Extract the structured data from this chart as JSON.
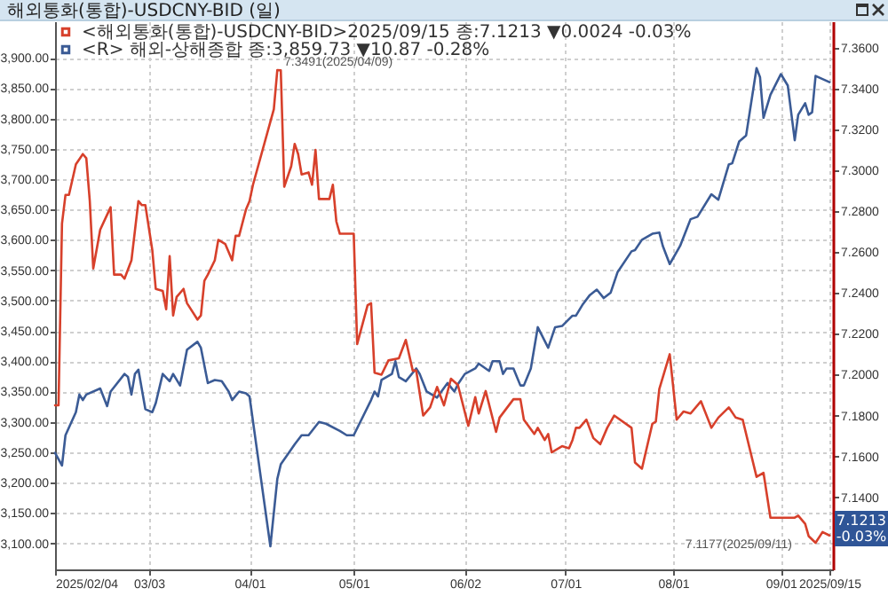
{
  "chart_data": {
    "type": "line",
    "title": "해외통화(통합)-USDCNY-BID (일)",
    "xlim": [
      "2025-02-04",
      "2025-09-16"
    ],
    "xticks": [
      {
        "value": "2025-02-04",
        "label": "2025/02/04"
      },
      {
        "value": "2025-03-03",
        "label": "03/03"
      },
      {
        "value": "2025-04-01",
        "label": "04/01"
      },
      {
        "value": "2025-05-01",
        "label": "05/01"
      },
      {
        "value": "2025-06-02",
        "label": "06/02"
      },
      {
        "value": "2025-07-01",
        "label": "07/01"
      },
      {
        "value": "2025-08-01",
        "label": "08/01"
      },
      {
        "value": "2025-09-01",
        "label": "09/01"
      },
      {
        "value": "2025-09-15",
        "label": "2025/09/15"
      }
    ],
    "ylim": [
      3057,
      3960
    ],
    "yticks": [
      {
        "value": 3100,
        "label": "3,100.00"
      },
      {
        "value": 3150,
        "label": "3,150.00"
      },
      {
        "value": 3200,
        "label": "3,200.00"
      },
      {
        "value": 3250,
        "label": "3,250.00"
      },
      {
        "value": 3300,
        "label": "3,300.00"
      },
      {
        "value": 3350,
        "label": "3,350.00"
      },
      {
        "value": 3400,
        "label": "3,400.00"
      },
      {
        "value": 3450,
        "label": "3,450.00"
      },
      {
        "value": 3500,
        "label": "3,500.00"
      },
      {
        "value": 3550,
        "label": "3,550.00"
      },
      {
        "value": 3600,
        "label": "3,600.00"
      },
      {
        "value": 3650,
        "label": "3,650.00"
      },
      {
        "value": 3700,
        "label": "3,700.00"
      },
      {
        "value": 3750,
        "label": "3,750.00"
      },
      {
        "value": 3800,
        "label": "3,800.00"
      },
      {
        "value": 3850,
        "label": "3,850.00"
      },
      {
        "value": 3900,
        "label": "3,900.00"
      }
    ],
    "y2lim": [
      7.1047,
      7.373
    ],
    "y2ticks": [
      {
        "value": 7.14,
        "label": "7.1400"
      },
      {
        "value": 7.16,
        "label": "7.1600"
      },
      {
        "value": 7.18,
        "label": "7.1800"
      },
      {
        "value": 7.2,
        "label": "7.2000"
      },
      {
        "value": 7.22,
        "label": "7.2200"
      },
      {
        "value": 7.24,
        "label": "7.2400"
      },
      {
        "value": 7.26,
        "label": "7.2600"
      },
      {
        "value": 7.28,
        "label": "7.2800"
      },
      {
        "value": 7.3,
        "label": "7.3000"
      },
      {
        "value": 7.32,
        "label": "7.3200"
      },
      {
        "value": 7.34,
        "label": "7.3400"
      },
      {
        "value": 7.36,
        "label": "7.3600"
      }
    ],
    "grid": true,
    "legend": "top left",
    "annotations": [
      "7.3491(2025/04/09)",
      "7.1177(2025/09/11)",
      "7.1213 -0.03%"
    ],
    "series": [
      {
        "name": "<해외통화(통합)-USDCNY-BID>2025/09/15 종:7.1213 ▼0.0024 -0.03%",
        "color": "#d7402b",
        "axis": "y2",
        "x": [
          "2025-02-04",
          "2025-02-05",
          "2025-02-06",
          "2025-02-07",
          "2025-02-08",
          "2025-02-10",
          "2025-02-12",
          "2025-02-13",
          "2025-02-14",
          "2025-02-15",
          "2025-02-17",
          "2025-02-20",
          "2025-02-21",
          "2025-02-23",
          "2025-02-24",
          "2025-02-26",
          "2025-02-28",
          "2025-03-01",
          "2025-03-02",
          "2025-03-04",
          "2025-03-05",
          "2025-03-07",
          "2025-03-08",
          "2025-03-09",
          "2025-03-10",
          "2025-03-11",
          "2025-03-13",
          "2025-03-14",
          "2025-03-17",
          "2025-03-18",
          "2025-03-19",
          "2025-03-20",
          "2025-03-22",
          "2025-03-23",
          "2025-03-25",
          "2025-03-27",
          "2025-03-28",
          "2025-03-29",
          "2025-03-31",
          "2025-04-01",
          "2025-04-02",
          "2025-04-08",
          "2025-04-09",
          "2025-04-10",
          "2025-04-11",
          "2025-04-13",
          "2025-04-14",
          "2025-04-15",
          "2025-04-16",
          "2025-04-18",
          "2025-04-19",
          "2025-04-20",
          "2025-04-21",
          "2025-04-24",
          "2025-04-25",
          "2025-04-26",
          "2025-04-27",
          "2025-05-01",
          "2025-05-02",
          "2025-05-05",
          "2025-05-06",
          "2025-05-07",
          "2025-05-09",
          "2025-05-11",
          "2025-05-14",
          "2025-05-16",
          "2025-05-18",
          "2025-05-19",
          "2025-05-21",
          "2025-05-23",
          "2025-05-25",
          "2025-05-27",
          "2025-05-29",
          "2025-05-31",
          "2025-06-03",
          "2025-06-05",
          "2025-06-06",
          "2025-06-08",
          "2025-06-11",
          "2025-06-12",
          "2025-06-16",
          "2025-06-18",
          "2025-06-19",
          "2025-06-22",
          "2025-06-23",
          "2025-06-25",
          "2025-06-26",
          "2025-06-27",
          "2025-06-30",
          "2025-07-02",
          "2025-07-03",
          "2025-07-04",
          "2025-07-05",
          "2025-07-07",
          "2025-07-09",
          "2025-07-11",
          "2025-07-13",
          "2025-07-15",
          "2025-07-20",
          "2025-07-21",
          "2025-07-23",
          "2025-07-26",
          "2025-07-27",
          "2025-07-28",
          "2025-07-31",
          "2025-08-02",
          "2025-08-04",
          "2025-08-06",
          "2025-08-09",
          "2025-08-12",
          "2025-08-14",
          "2025-08-17",
          "2025-08-19",
          "2025-08-21",
          "2025-08-25",
          "2025-08-27",
          "2025-08-29",
          "2025-09-05",
          "2025-09-06",
          "2025-09-08",
          "2025-09-09",
          "2025-09-11",
          "2025-09-13",
          "2025-09-15"
        ],
        "values": [
          7.185,
          7.185,
          7.274,
          7.288,
          7.288,
          7.303,
          7.308,
          7.306,
          7.285,
          7.252,
          7.271,
          7.282,
          7.249,
          7.249,
          7.247,
          7.256,
          7.285,
          7.283,
          7.283,
          7.261,
          7.242,
          7.241,
          7.232,
          7.258,
          7.229,
          7.238,
          7.242,
          7.235,
          7.227,
          7.229,
          7.246,
          7.249,
          7.256,
          7.266,
          7.264,
          7.256,
          7.268,
          7.268,
          7.281,
          7.285,
          7.293,
          7.33,
          7.3491,
          7.349,
          7.292,
          7.302,
          7.313,
          7.308,
          7.298,
          7.299,
          7.293,
          7.31,
          7.286,
          7.286,
          7.293,
          7.275,
          7.269,
          7.269,
          7.215,
          7.234,
          7.235,
          7.201,
          7.2,
          7.207,
          7.208,
          7.217,
          7.202,
          7.202,
          7.18,
          7.184,
          7.194,
          7.185,
          7.198,
          7.195,
          7.175,
          7.189,
          7.181,
          7.192,
          7.172,
          7.179,
          7.188,
          7.188,
          7.178,
          7.171,
          7.174,
          7.168,
          7.171,
          7.162,
          7.165,
          7.164,
          7.168,
          7.174,
          7.174,
          7.178,
          7.169,
          7.166,
          7.174,
          7.18,
          7.174,
          7.157,
          7.154,
          7.176,
          7.177,
          7.193,
          7.21,
          7.178,
          7.182,
          7.181,
          7.187,
          7.174,
          7.179,
          7.184,
          7.179,
          7.178,
          7.15,
          7.152,
          7.13,
          7.13,
          7.131,
          7.127,
          7.121,
          7.1177,
          7.123,
          7.1213
        ]
      },
      {
        "name": "<R> 해외-상해종합 종:3,859.73 ▼10.87 -0.28%",
        "color": "#3b5b95",
        "x": [
          "2025-02-04",
          "2025-02-06",
          "2025-02-07",
          "2025-02-10",
          "2025-02-11",
          "2025-02-12",
          "2025-02-13",
          "2025-02-17",
          "2025-02-19",
          "2025-02-20",
          "2025-02-24",
          "2025-02-25",
          "2025-02-26",
          "2025-02-27",
          "2025-02-28",
          "2025-03-02",
          "2025-03-04",
          "2025-03-05",
          "2025-03-07",
          "2025-03-09",
          "2025-03-10",
          "2025-03-12",
          "2025-03-14",
          "2025-03-17",
          "2025-03-18",
          "2025-03-20",
          "2025-03-22",
          "2025-03-24",
          "2025-03-26",
          "2025-03-27",
          "2025-03-29",
          "2025-03-31",
          "2025-04-01",
          "2025-04-07",
          "2025-04-09",
          "2025-04-10",
          "2025-04-14",
          "2025-04-16",
          "2025-04-18",
          "2025-04-21",
          "2025-04-23",
          "2025-04-27",
          "2025-04-29",
          "2025-05-01",
          "2025-05-06",
          "2025-05-07",
          "2025-05-08",
          "2025-05-09",
          "2025-05-12",
          "2025-05-13",
          "2025-05-14",
          "2025-05-16",
          "2025-05-19",
          "2025-05-20",
          "2025-05-22",
          "2025-05-25",
          "2025-05-28",
          "2025-05-30",
          "2025-05-31",
          "2025-06-02",
          "2025-06-05",
          "2025-06-06",
          "2025-06-09",
          "2025-06-10",
          "2025-06-12",
          "2025-06-13",
          "2025-06-14",
          "2025-06-16",
          "2025-06-18",
          "2025-06-19",
          "2025-06-21",
          "2025-06-23",
          "2025-06-26",
          "2025-06-28",
          "2025-06-30",
          "2025-07-03",
          "2025-07-04",
          "2025-07-06",
          "2025-07-08",
          "2025-07-10",
          "2025-07-12",
          "2025-07-14",
          "2025-07-16",
          "2025-07-20",
          "2025-07-21",
          "2025-07-23",
          "2025-07-26",
          "2025-07-28",
          "2025-07-29",
          "2025-07-31",
          "2025-08-03",
          "2025-08-06",
          "2025-08-08",
          "2025-08-12",
          "2025-08-14",
          "2025-08-17",
          "2025-08-18",
          "2025-08-20",
          "2025-08-22",
          "2025-08-25",
          "2025-08-26",
          "2025-08-27",
          "2025-08-29",
          "2025-09-01",
          "2025-09-03",
          "2025-09-05",
          "2025-09-06",
          "2025-09-08",
          "2025-09-09",
          "2025-09-10",
          "2025-09-11",
          "2025-09-15"
        ],
        "values": [
          3249,
          3228,
          3278,
          3316,
          3345,
          3336,
          3345,
          3355,
          3326,
          3350,
          3379,
          3374,
          3345,
          3379,
          3386,
          3321,
          3316,
          3331,
          3379,
          3367,
          3379,
          3360,
          3419,
          3432,
          3422,
          3364,
          3369,
          3367,
          3350,
          3336,
          3350,
          3347,
          3342,
          3095,
          3206,
          3230,
          3263,
          3278,
          3278,
          3300,
          3297,
          3285,
          3278,
          3278,
          3336,
          3350,
          3342,
          3369,
          3379,
          3400,
          3374,
          3367,
          3388,
          3379,
          3350,
          3340,
          3364,
          3350,
          3362,
          3379,
          3388,
          3396,
          3384,
          3400,
          3400,
          3379,
          3388,
          3388,
          3360,
          3360,
          3388,
          3456,
          3422,
          3456,
          3458,
          3475,
          3475,
          3494,
          3509,
          3518,
          3504,
          3513,
          3547,
          3581,
          3583,
          3600,
          3610,
          3612,
          3590,
          3560,
          3590,
          3634,
          3638,
          3675,
          3666,
          3724,
          3726,
          3762,
          3772,
          3883,
          3868,
          3801,
          3839,
          3873,
          3854,
          3764,
          3806,
          3825,
          3806,
          3810,
          3870,
          3859.73
        ]
      }
    ]
  }
}
